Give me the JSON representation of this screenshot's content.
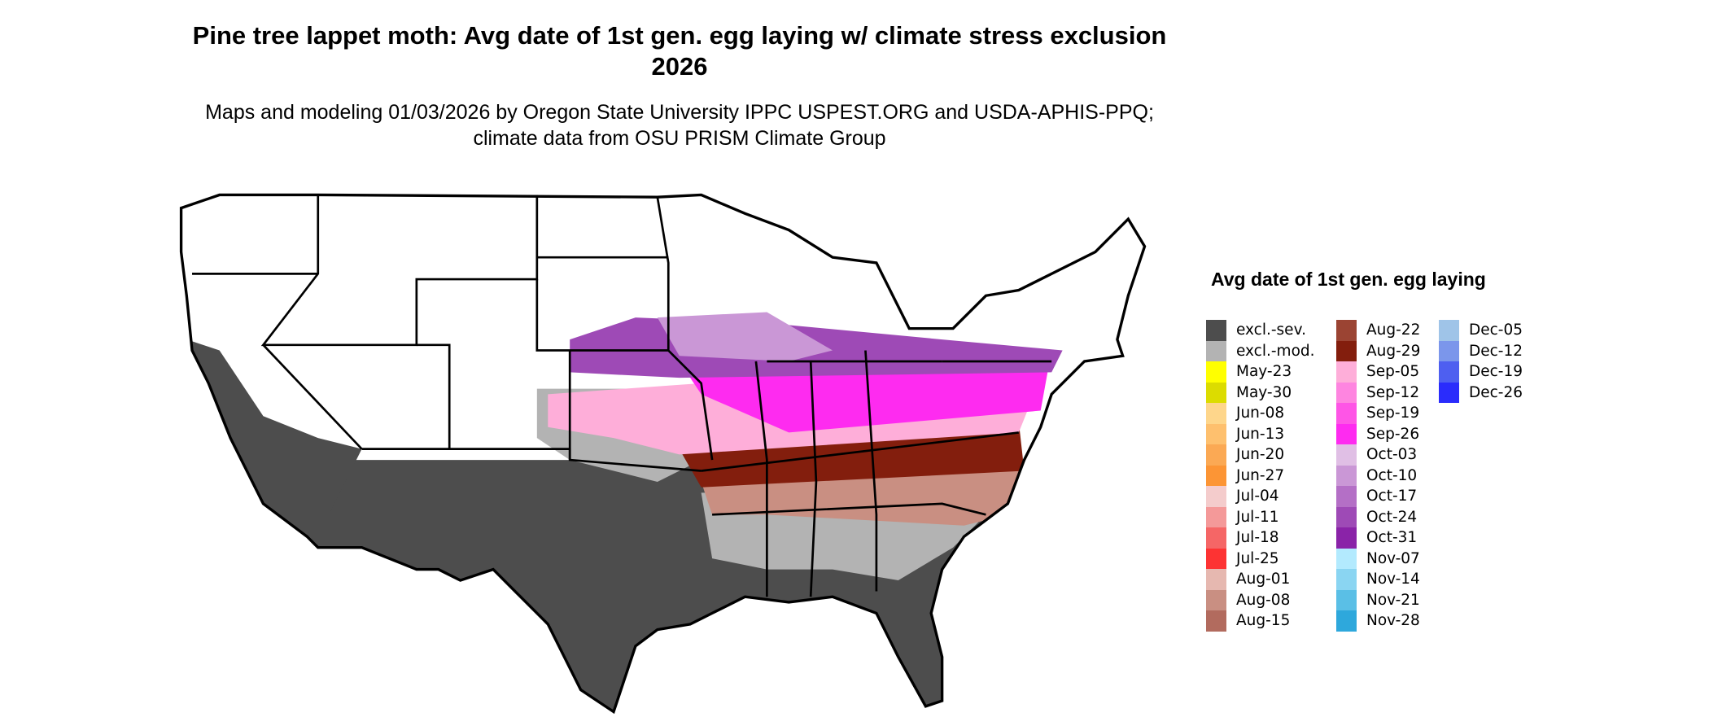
{
  "title": "Pine tree lappet moth: Avg date of 1st gen. egg laying w/ climate stress exclusion 2026",
  "subtitle": "Maps and modeling 01/03/2026 by Oregon State University IPPC USPEST.ORG and USDA-APHIS-PPQ; climate data from OSU PRISM Climate Group",
  "legend": {
    "title": "Avg date of 1st gen. egg laying",
    "columns": [
      [
        {
          "label": "excl.-sev.",
          "color": "#4d4d4d"
        },
        {
          "label": "excl.-mod.",
          "color": "#b3b3b3"
        },
        {
          "label": "May-23",
          "color": "#ffff00"
        },
        {
          "label": "May-30",
          "color": "#dcdc00"
        },
        {
          "label": "Jun-08",
          "color": "#fed68b"
        },
        {
          "label": "Jun-13",
          "color": "#fec06e"
        },
        {
          "label": "Jun-20",
          "color": "#fba954"
        },
        {
          "label": "Jun-27",
          "color": "#fc9535"
        },
        {
          "label": "Jul-04",
          "color": "#f4cccc"
        },
        {
          "label": "Jul-11",
          "color": "#f49999"
        },
        {
          "label": "Jul-18",
          "color": "#f56666"
        },
        {
          "label": "Jul-25",
          "color": "#fd3333"
        },
        {
          "label": "Aug-01",
          "color": "#e6b8b0"
        },
        {
          "label": "Aug-08",
          "color": "#c98f82"
        },
        {
          "label": "Aug-15",
          "color": "#b26b5e"
        }
      ],
      [
        {
          "label": "Aug-22",
          "color": "#9b4433"
        },
        {
          "label": "Aug-29",
          "color": "#831e0d"
        },
        {
          "label": "Sep-05",
          "color": "#feaed9"
        },
        {
          "label": "Sep-12",
          "color": "#fe85e0"
        },
        {
          "label": "Sep-19",
          "color": "#fe55e6"
        },
        {
          "label": "Sep-26",
          "color": "#fe2bf0"
        },
        {
          "label": "Oct-03",
          "color": "#e0bfe5"
        },
        {
          "label": "Oct-10",
          "color": "#ca97d6"
        },
        {
          "label": "Oct-17",
          "color": "#b46fc6"
        },
        {
          "label": "Oct-24",
          "color": "#9e4ab6"
        },
        {
          "label": "Oct-31",
          "color": "#8a23a8"
        },
        {
          "label": "Nov-07",
          "color": "#b3eafe"
        },
        {
          "label": "Nov-14",
          "color": "#8ad5f2"
        },
        {
          "label": "Nov-21",
          "color": "#5abfe6"
        },
        {
          "label": "Nov-28",
          "color": "#2ea8dc"
        }
      ],
      [
        {
          "label": "Dec-05",
          "color": "#9fc4e8"
        },
        {
          "label": "Dec-12",
          "color": "#7b96eb"
        },
        {
          "label": "Dec-19",
          "color": "#4e5ff0"
        },
        {
          "label": "Dec-26",
          "color": "#2a2cfc"
        }
      ]
    ]
  }
}
